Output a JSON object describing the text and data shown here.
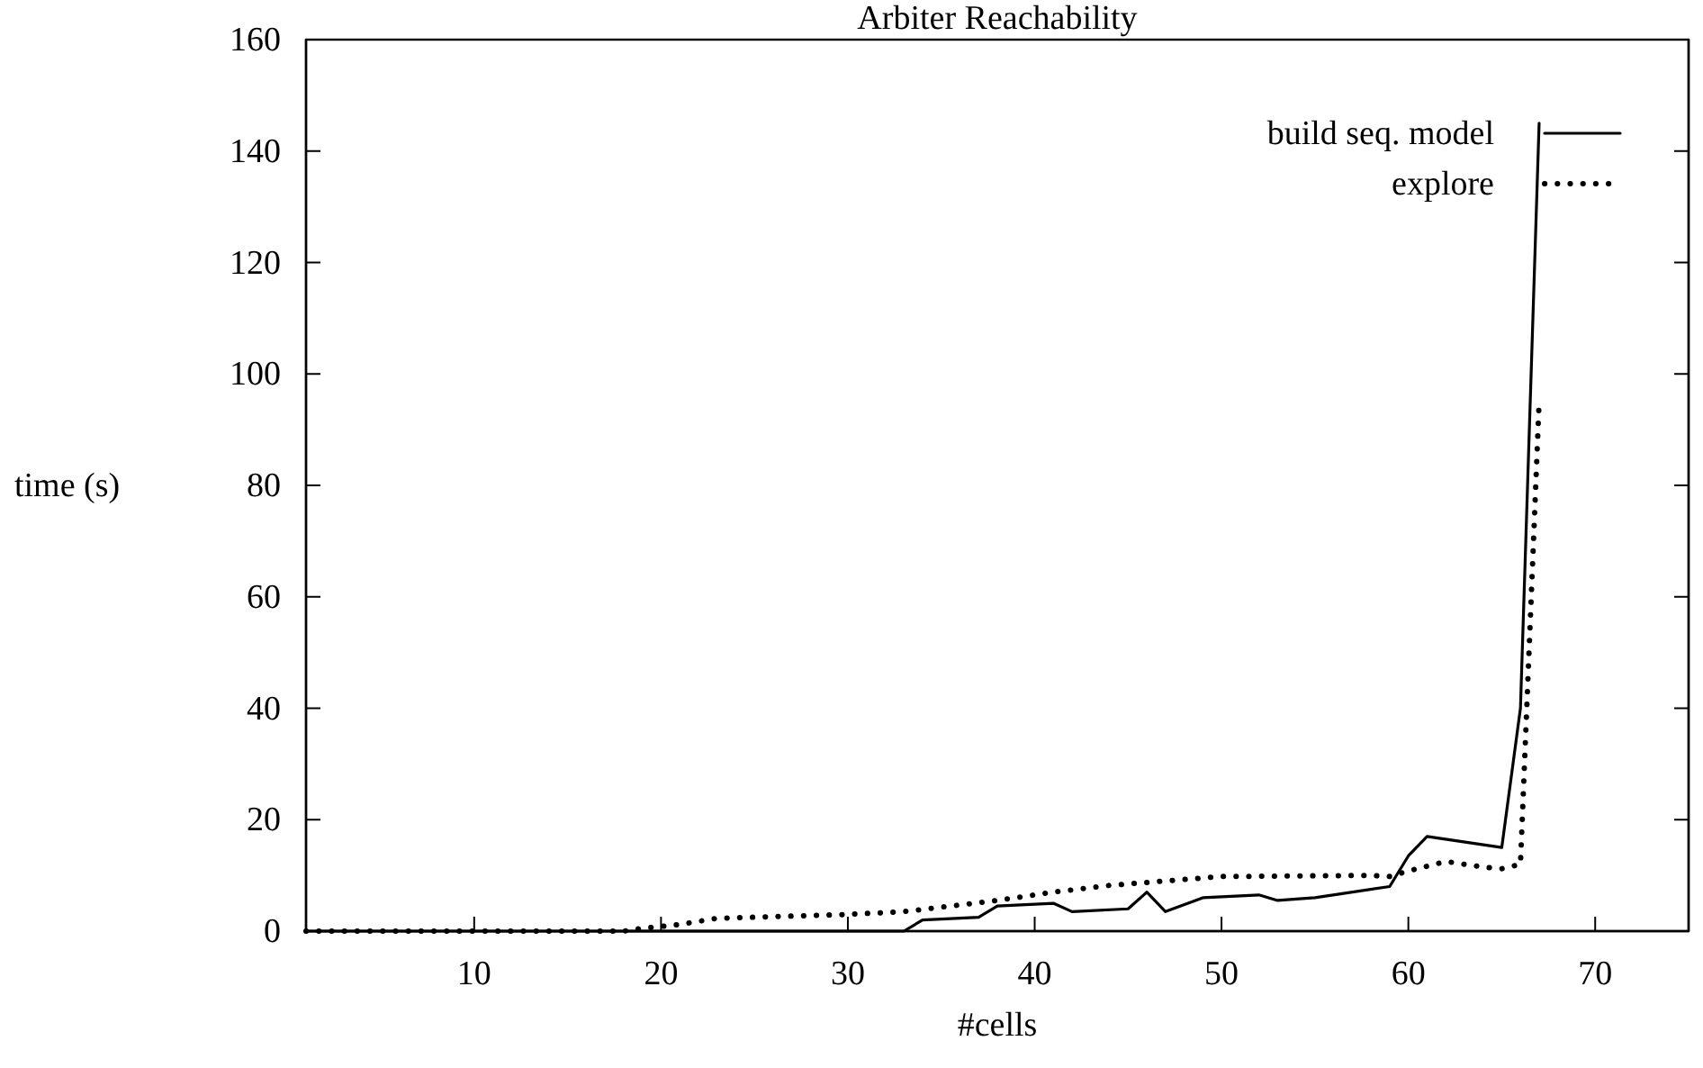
{
  "chart_data": {
    "type": "line",
    "title": "Arbiter Reachability",
    "xlabel": "#cells",
    "ylabel": "time (s)",
    "xlim": [
      1,
      75
    ],
    "xticks": [
      10,
      20,
      30,
      40,
      50,
      60,
      70
    ],
    "ylim": [
      0,
      160
    ],
    "yticks": [
      0,
      20,
      40,
      60,
      80,
      100,
      120,
      140,
      160
    ],
    "grid": false,
    "legend": "top right",
    "marker": "none",
    "series": [
      {
        "name": "build seq. model",
        "color": "#000000",
        "line_style": "solid",
        "x": [
          1,
          33,
          34,
          37,
          38,
          41,
          42,
          45,
          46,
          47,
          49,
          52,
          53,
          55,
          59,
          60,
          61,
          65,
          66,
          67
        ],
        "values": [
          0,
          0,
          2,
          2.5,
          4.5,
          5,
          3.5,
          4,
          7,
          3.5,
          6,
          6.5,
          5.5,
          6,
          8,
          13.5,
          17,
          15,
          40,
          145
        ]
      },
      {
        "name": "explore",
        "color": "#000000",
        "line_style": "dotted",
        "x": [
          1,
          18,
          19,
          21,
          23,
          30,
          33,
          35,
          38,
          41,
          44,
          47,
          50,
          58,
          59,
          60,
          62,
          64,
          65,
          66,
          67
        ],
        "values": [
          0,
          0,
          0.5,
          1.2,
          2.3,
          3,
          3.5,
          4.3,
          5.5,
          7,
          8.2,
          9,
          9.8,
          10,
          9.8,
          10.8,
          12.5,
          11.5,
          11.2,
          12,
          95
        ]
      }
    ]
  }
}
